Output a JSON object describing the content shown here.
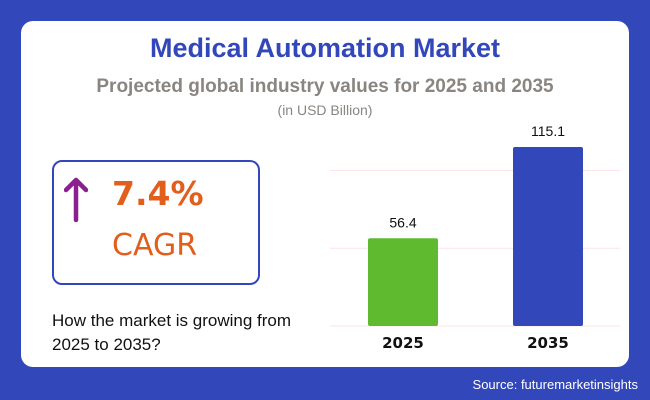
{
  "header": {
    "title": "Medical Automation Market",
    "subtitle": "Projected global industry values for 2025 and 2035",
    "unit": "(in USD Billion)"
  },
  "kpi": {
    "value": "7.4%",
    "label": "CAGR",
    "icon": "arrow-up-icon",
    "question": "How the market is growing from 2025 to 2035?"
  },
  "source": "Source: futuremarketinsights",
  "colors": {
    "background": "#3247b9",
    "bar_2025": "#5fba2f",
    "bar_2035": "#3247b9",
    "accent": "#e25f1b",
    "arrow": "#8b1f8f"
  },
  "chart_data": {
    "type": "bar",
    "title": "Medical Automation Market",
    "categories": [
      "2025",
      "2035"
    ],
    "values": [
      56.4,
      115.1
    ],
    "value_labels": [
      "56.4",
      "115.1"
    ],
    "colors": [
      "#5fba2f",
      "#3247b9"
    ],
    "ylabel": "USD Billion",
    "xlabel": "",
    "ylim": [
      0,
      120
    ],
    "gridlines": [
      0,
      50,
      100
    ],
    "grid": true
  }
}
